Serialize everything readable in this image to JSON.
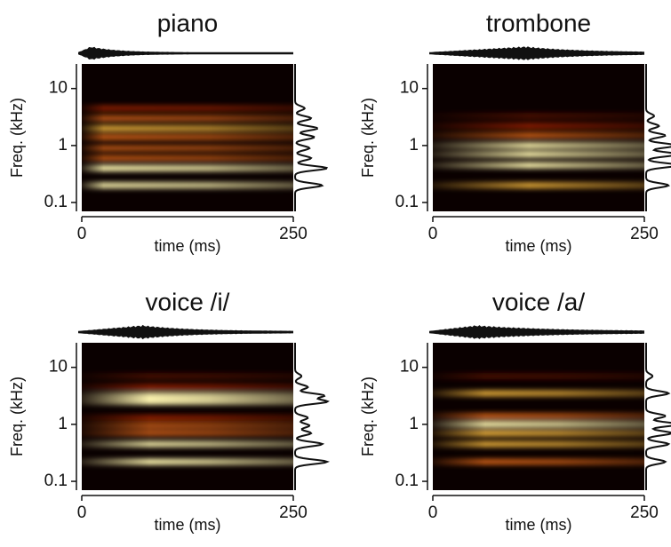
{
  "chart_data": [
    {
      "type": "spectrogram",
      "title": "piano",
      "xlabel": "time (ms)",
      "ylabel": "Freq. (kHz)",
      "xlim": [
        0,
        250
      ],
      "xticks": [
        0,
        250
      ],
      "ylim": [
        0.07,
        27
      ],
      "yticks": [
        0.1,
        1,
        10
      ],
      "log_y": true,
      "y": [
        0.2,
        0.4,
        0.6,
        0.9,
        1.4,
        2,
        3,
        4.5
      ],
      "values": [
        0.85,
        1,
        0.5,
        0.45,
        0.6,
        0.7,
        0.5,
        0.3
      ]
    },
    {
      "type": "spectrogram",
      "title": "trombone",
      "xlabel": "time (ms)",
      "ylabel": "Freq. (kHz)",
      "xlim": [
        0,
        250
      ],
      "xticks": [
        0,
        250
      ],
      "ylim": [
        0.07,
        27
      ],
      "yticks": [
        0.1,
        1,
        10
      ],
      "log_y": true,
      "y": [
        0.2,
        0.45,
        0.7,
        1.0,
        1.5,
        2.2,
        3.3
      ],
      "values": [
        0.7,
        1,
        1,
        0.95,
        0.6,
        0.4,
        0.25
      ]
    },
    {
      "type": "spectrogram",
      "title": "voice /i/",
      "xlabel": "time (ms)",
      "ylabel": "Freq. (kHz)",
      "xlim": [
        0,
        250
      ],
      "xticks": [
        0,
        250
      ],
      "ylim": [
        0.07,
        27
      ],
      "yticks": [
        0.1,
        1,
        10
      ],
      "log_y": true,
      "y": [
        0.22,
        0.45,
        0.7,
        0.95,
        1.3,
        2.5,
        3.2,
        4.5,
        7
      ],
      "values": [
        1,
        0.85,
        0.5,
        0.45,
        0.4,
        1,
        0.9,
        0.4,
        0.2
      ]
    },
    {
      "type": "spectrogram",
      "title": "voice /a/",
      "xlabel": "time (ms)",
      "ylabel": "Freq. (kHz)",
      "xlim": [
        0,
        250
      ],
      "xticks": [
        0,
        250
      ],
      "ylim": [
        0.07,
        27
      ],
      "yticks": [
        0.1,
        1,
        10
      ],
      "log_y": true,
      "y": [
        0.22,
        0.45,
        0.7,
        1.0,
        1.4,
        3.5,
        7
      ],
      "values": [
        0.6,
        0.7,
        0.8,
        1,
        0.6,
        0.7,
        0.2
      ]
    }
  ]
}
